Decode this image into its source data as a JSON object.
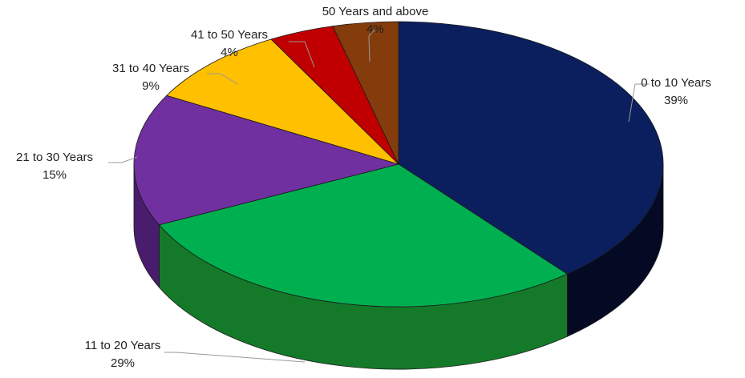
{
  "chart_data": {
    "type": "pie",
    "style": "3d",
    "title": "",
    "legend": "none",
    "slices": [
      {
        "label": "0 to 10 Years",
        "percent_label": "39%",
        "value": 39,
        "color": "#0B1F5E",
        "side_color": "#040A24"
      },
      {
        "label": "11 to 20 Years",
        "percent_label": "29%",
        "value": 29,
        "color": "#00B050",
        "side_color": "#147A2A"
      },
      {
        "label": "21 to 30 Years",
        "percent_label": "15%",
        "value": 15,
        "color": "#7030A0",
        "side_color": "#4A1C6E"
      },
      {
        "label": "31 to 40 Years",
        "percent_label": "9%",
        "value": 9,
        "color": "#FFC000",
        "side_color": "#B58600"
      },
      {
        "label": "41 to 50 Years",
        "percent_label": "4%",
        "value": 4,
        "color": "#C00000",
        "side_color": "#7A0000"
      },
      {
        "label": "50 Years and above",
        "percent_label": "4%",
        "value": 4,
        "color": "#843C0C",
        "side_color": "#4E2206"
      }
    ]
  }
}
